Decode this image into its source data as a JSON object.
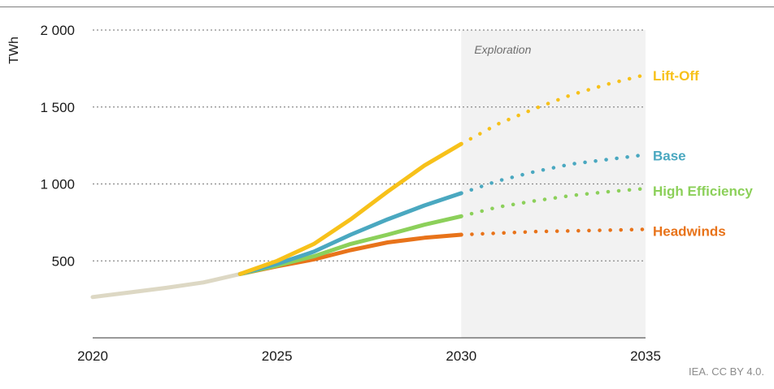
{
  "chart_data": {
    "type": "line",
    "ylabel": "TWh",
    "xlim": [
      2020,
      2035
    ],
    "ylim": [
      0,
      2000
    ],
    "xticks": [
      "2020",
      "2025",
      "2030",
      "2035"
    ],
    "yticks": [
      "500",
      "1 000",
      "1 500",
      "2 000"
    ],
    "ytick_values": [
      500,
      1000,
      1500,
      2000
    ],
    "xtick_values": [
      2020,
      2025,
      2030,
      2035
    ],
    "grid": "horizontal dotted",
    "shaded_region": {
      "label": "Exploration",
      "x_start": 2030,
      "x_end": 2035,
      "color": "#f2f2f2"
    },
    "historical": {
      "color": "#ddd8c4",
      "x": [
        2020,
        2021,
        2022,
        2023,
        2024
      ],
      "values": [
        265,
        295,
        325,
        360,
        415
      ]
    },
    "series": [
      {
        "name": "Lift-Off",
        "color": "#f7c11a",
        "x": [
          2024,
          2025,
          2026,
          2027,
          2028,
          2029,
          2030,
          2031,
          2032,
          2033,
          2034,
          2035
        ],
        "values": [
          415,
          500,
          610,
          770,
          950,
          1120,
          1260,
          1390,
          1490,
          1580,
          1650,
          1710
        ]
      },
      {
        "name": "Base",
        "color": "#4aa8c0",
        "x": [
          2024,
          2025,
          2026,
          2027,
          2028,
          2029,
          2030,
          2031,
          2032,
          2033,
          2034,
          2035
        ],
        "values": [
          415,
          480,
          560,
          670,
          770,
          860,
          940,
          1020,
          1080,
          1130,
          1160,
          1190
        ]
      },
      {
        "name": "High Efficiency",
        "color": "#8cd05a",
        "x": [
          2024,
          2025,
          2026,
          2027,
          2028,
          2029,
          2030,
          2031,
          2032,
          2033,
          2034,
          2035
        ],
        "values": [
          415,
          470,
          530,
          610,
          670,
          735,
          790,
          850,
          890,
          925,
          950,
          970
        ]
      },
      {
        "name": "Headwinds",
        "color": "#e8731a",
        "x": [
          2024,
          2025,
          2026,
          2027,
          2028,
          2029,
          2030,
          2031,
          2032,
          2033,
          2034,
          2035
        ],
        "values": [
          415,
          465,
          510,
          570,
          620,
          650,
          670,
          680,
          690,
          695,
          700,
          705
        ]
      }
    ]
  },
  "footer": {
    "source": "IEA. CC BY 4.0."
  }
}
